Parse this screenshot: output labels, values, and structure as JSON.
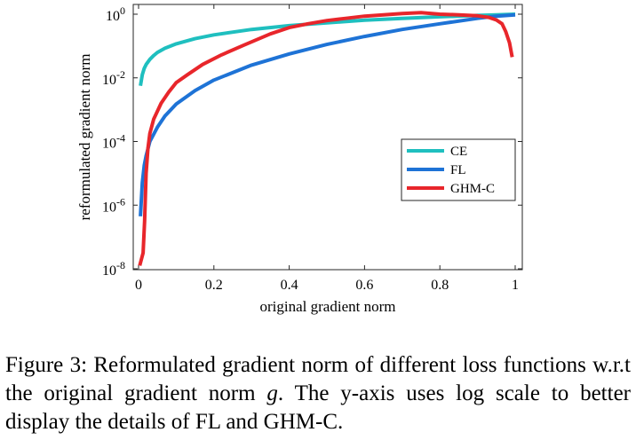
{
  "chart_data": {
    "type": "line",
    "xlabel": "original gradient norm",
    "ylabel": "reformulated gradient norm",
    "xlim": [
      0,
      1
    ],
    "ylim_exponent": [
      -8,
      0
    ],
    "yscale": "log",
    "x_ticks": [
      {
        "value": 0,
        "label": "0"
      },
      {
        "value": 0.2,
        "label": "0.2"
      },
      {
        "value": 0.4,
        "label": "0.4"
      },
      {
        "value": 0.6,
        "label": "0.6"
      },
      {
        "value": 0.8,
        "label": "0.8"
      },
      {
        "value": 1,
        "label": "1"
      }
    ],
    "y_ticks": [
      {
        "exp": 0,
        "label": "0"
      },
      {
        "exp": -2,
        "label": "-2"
      },
      {
        "exp": -4,
        "label": "-4"
      },
      {
        "exp": -6,
        "label": "-6"
      },
      {
        "exp": -8,
        "label": "-8"
      }
    ],
    "y_tick_base": "10",
    "legend": {
      "placement": "center-right"
    },
    "series": [
      {
        "name": "CE",
        "color": "#1FBFBF",
        "points": [
          [
            0.005,
            -2.25
          ],
          [
            0.01,
            -1.9
          ],
          [
            0.015,
            -1.7
          ],
          [
            0.02,
            -1.58
          ],
          [
            0.03,
            -1.42
          ],
          [
            0.04,
            -1.3
          ],
          [
            0.05,
            -1.2
          ],
          [
            0.07,
            -1.07
          ],
          [
            0.1,
            -0.93
          ],
          [
            0.15,
            -0.77
          ],
          [
            0.2,
            -0.65
          ],
          [
            0.3,
            -0.48
          ],
          [
            0.4,
            -0.36
          ],
          [
            0.5,
            -0.27
          ],
          [
            0.6,
            -0.19
          ],
          [
            0.7,
            -0.13
          ],
          [
            0.8,
            -0.08
          ],
          [
            0.9,
            -0.04
          ],
          [
            0.95,
            -0.02
          ],
          [
            1.0,
            0.0
          ]
        ]
      },
      {
        "name": "FL",
        "color": "#1E73D6",
        "points": [
          [
            0.005,
            -6.35
          ],
          [
            0.01,
            -5.3
          ],
          [
            0.015,
            -4.75
          ],
          [
            0.02,
            -4.45
          ],
          [
            0.03,
            -4.0
          ],
          [
            0.05,
            -3.55
          ],
          [
            0.07,
            -3.2
          ],
          [
            0.1,
            -2.82
          ],
          [
            0.15,
            -2.4
          ],
          [
            0.2,
            -2.07
          ],
          [
            0.3,
            -1.6
          ],
          [
            0.4,
            -1.25
          ],
          [
            0.5,
            -0.95
          ],
          [
            0.6,
            -0.7
          ],
          [
            0.7,
            -0.48
          ],
          [
            0.8,
            -0.3
          ],
          [
            0.9,
            -0.13
          ],
          [
            0.95,
            -0.06
          ],
          [
            1.0,
            -0.02
          ]
        ]
      },
      {
        "name": "GHM-C",
        "color": "#E8262B",
        "points": [
          [
            0.003,
            -7.9
          ],
          [
            0.012,
            -7.5
          ],
          [
            0.016,
            -6.5
          ],
          [
            0.02,
            -5.0
          ],
          [
            0.025,
            -4.2
          ],
          [
            0.03,
            -3.75
          ],
          [
            0.04,
            -3.3
          ],
          [
            0.06,
            -2.8
          ],
          [
            0.08,
            -2.45
          ],
          [
            0.1,
            -2.15
          ],
          [
            0.13,
            -1.9
          ],
          [
            0.17,
            -1.58
          ],
          [
            0.22,
            -1.28
          ],
          [
            0.28,
            -0.97
          ],
          [
            0.35,
            -0.62
          ],
          [
            0.4,
            -0.42
          ],
          [
            0.45,
            -0.3
          ],
          [
            0.5,
            -0.2
          ],
          [
            0.55,
            -0.13
          ],
          [
            0.6,
            -0.06
          ],
          [
            0.65,
            -0.02
          ],
          [
            0.7,
            0.02
          ],
          [
            0.75,
            0.05
          ],
          [
            0.8,
            0.0
          ],
          [
            0.85,
            -0.02
          ],
          [
            0.9,
            -0.05
          ],
          [
            0.93,
            -0.1
          ],
          [
            0.95,
            -0.18
          ],
          [
            0.965,
            -0.3
          ],
          [
            0.975,
            -0.55
          ],
          [
            0.985,
            -0.9
          ],
          [
            0.992,
            -1.35
          ]
        ]
      }
    ]
  },
  "caption": {
    "label": "Figure 3:",
    "text_before_var": "Reformulated gradient norm of different loss functions w.r.t the original gradient norm",
    "variable": "g",
    "text_after_var": ". The y-axis uses log scale to better display the details of FL and GHM-C."
  }
}
